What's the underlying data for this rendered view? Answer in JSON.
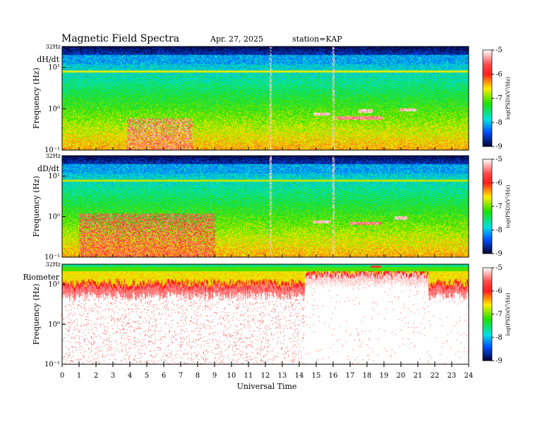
{
  "header": {
    "title": "Magnetic  Field  Spectra",
    "date": "Apr. 27, 2025",
    "station": "station=KAP"
  },
  "chart_data": [
    {
      "type": "heatmap",
      "panel": "dH/dt",
      "label": "dH/dt",
      "ylabel": "Frequency  (Hz)",
      "top_label": "32Hz",
      "y_ticks": [
        "10¹",
        "10⁰",
        "10⁻¹"
      ],
      "ylim_hz": [
        0.1,
        32
      ],
      "xlim_hours": [
        0,
        24
      ],
      "colorbar": {
        "label": "log(PSD)(V²/Hz)",
        "ticks": [
          -5,
          -6,
          -7,
          -8,
          -9
        ],
        "range": [
          -9,
          -5
        ]
      },
      "features": [
        {
          "kind": "narrowband_line",
          "freq_hz": 8.0,
          "t_start": 0,
          "t_end": 24,
          "log_psd": -6.7
        },
        {
          "kind": "vertical_spike",
          "t_hours": 12.3,
          "log_psd": -5.2
        },
        {
          "kind": "vertical_spike",
          "t_hours": 16.0,
          "log_psd": -5.2
        },
        {
          "kind": "burst",
          "t_start": 3.8,
          "t_end": 7.7,
          "f_low_hz": 0.1,
          "f_high_hz": 0.6,
          "log_psd": -5.6
        },
        {
          "kind": "tone",
          "t_start": 14.8,
          "t_end": 15.8,
          "freq_hz": 0.75,
          "log_psd": -5.2
        },
        {
          "kind": "tone",
          "t_start": 16.2,
          "t_end": 18.9,
          "freq_hz": 0.6,
          "log_psd": -5.4
        },
        {
          "kind": "tone",
          "t_start": 17.5,
          "t_end": 18.3,
          "freq_hz": 0.9,
          "log_psd": -5.2
        },
        {
          "kind": "tone",
          "t_start": 19.9,
          "t_end": 20.9,
          "freq_hz": 0.95,
          "log_psd": -5.2
        }
      ]
    },
    {
      "type": "heatmap",
      "panel": "dD/dt",
      "label": "dD/dt",
      "ylabel": "Frequency  (Hz)",
      "top_label": "32Hz",
      "y_ticks": [
        "10¹",
        "10⁰",
        "10⁻¹"
      ],
      "ylim_hz": [
        0.1,
        32
      ],
      "xlim_hours": [
        0,
        24
      ],
      "colorbar": {
        "label": "log(PSD)(V²/Hz)",
        "ticks": [
          -5,
          -6,
          -7,
          -8,
          -9
        ],
        "range": [
          -9,
          -5
        ]
      },
      "features": [
        {
          "kind": "narrowband_line",
          "freq_hz": 8.0,
          "t_start": 0,
          "t_end": 24,
          "log_psd": -6.8
        },
        {
          "kind": "vertical_spike",
          "t_hours": 12.3,
          "log_psd": -5.2
        },
        {
          "kind": "vertical_spike",
          "t_hours": 16.0,
          "log_psd": -5.2
        },
        {
          "kind": "burst",
          "t_start": 1.0,
          "t_end": 9.0,
          "f_low_hz": 0.1,
          "f_high_hz": 1.2,
          "log_psd": -5.8
        },
        {
          "kind": "tone",
          "t_start": 14.8,
          "t_end": 15.8,
          "freq_hz": 0.75,
          "log_psd": -5.2
        },
        {
          "kind": "tone",
          "t_start": 17.0,
          "t_end": 18.8,
          "freq_hz": 0.7,
          "log_psd": -5.4
        },
        {
          "kind": "tone",
          "t_start": 19.6,
          "t_end": 20.4,
          "freq_hz": 0.95,
          "log_psd": -5.2
        }
      ]
    },
    {
      "type": "heatmap",
      "panel": "Riometer",
      "label": "Riometer",
      "ylabel": "Frequency  (Hz)",
      "top_label": "32Hz",
      "y_ticks": [
        "10¹",
        "10⁰",
        "10⁻¹"
      ],
      "ylim_hz": [
        0.1,
        32
      ],
      "xlim_hours": [
        0,
        24
      ],
      "colorbar": {
        "label": "log(PSD)(V²/Hz)",
        "ticks": [
          -5,
          -6,
          -7,
          -8,
          -9
        ],
        "range": [
          -9,
          -5
        ]
      },
      "features": [
        {
          "kind": "band_edge",
          "t_start": 0,
          "t_end": 14.3,
          "edge_hz": 9.0,
          "log_psd": -5.6
        },
        {
          "kind": "band_edge",
          "t_start": 14.3,
          "t_end": 21.6,
          "edge_hz": 18.0,
          "log_psd": -5.3
        },
        {
          "kind": "band_edge",
          "t_start": 21.6,
          "t_end": 24,
          "edge_hz": 9.0,
          "log_psd": -5.6
        },
        {
          "kind": "tone",
          "t_start": 18.2,
          "t_end": 18.8,
          "freq_hz": 28.0,
          "log_psd": -5.0
        }
      ]
    }
  ],
  "x_axis": {
    "label": "Universal  Time",
    "ticks": [
      "0",
      "1",
      "2",
      "3",
      "4",
      "5",
      "6",
      "7",
      "8",
      "9",
      "10",
      "11",
      "12",
      "13",
      "14",
      "15",
      "16",
      "17",
      "18",
      "19",
      "20",
      "21",
      "22",
      "23",
      "24"
    ]
  }
}
